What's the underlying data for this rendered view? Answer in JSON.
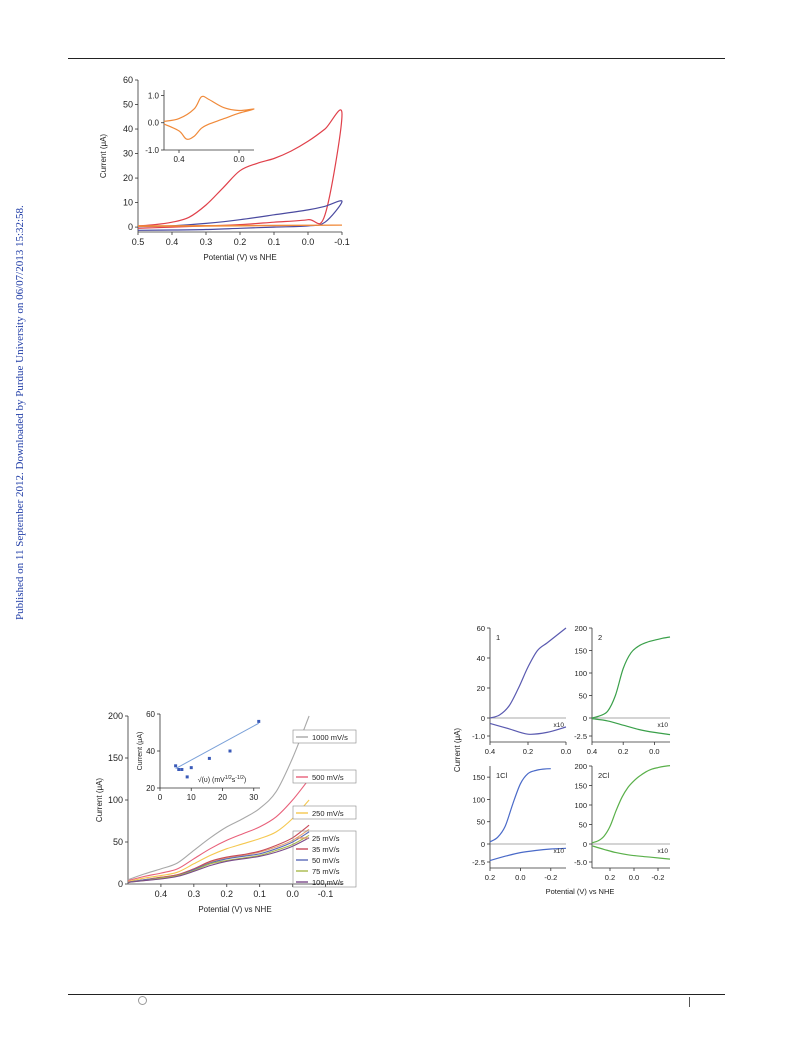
{
  "sidebar": {
    "text": "Published on 11 September 2012. Downloaded by Purdue University on 06/07/2013 15:32:58."
  },
  "chart_data": [
    {
      "id": "fig-a",
      "type": "line",
      "xlabel": "Potential (V) vs NHE",
      "ylabel": "Current (μA)",
      "xlim": [
        0.5,
        -0.1
      ],
      "ylim": [
        -2,
        60
      ],
      "xticks": [
        "0.5",
        "0.4",
        "0.3",
        "0.2",
        "0.1",
        "0.0",
        "-0.1"
      ],
      "yticks": [
        "0",
        "10",
        "20",
        "30",
        "40",
        "50",
        "60"
      ],
      "series": [
        {
          "color": "#e0404a",
          "x": [
            0.5,
            0.45,
            0.4,
            0.35,
            0.3,
            0.25,
            0.2,
            0.15,
            0.1,
            0.05,
            0.0,
            -0.05,
            -0.1,
            -0.05,
            0.0,
            0.1,
            0.2,
            0.3,
            0.4,
            0.5
          ],
          "y": [
            0.5,
            1,
            2,
            4,
            9,
            16,
            23,
            26,
            28,
            31,
            35,
            40,
            46,
            5,
            3,
            2,
            1,
            0.5,
            0,
            -0.5
          ]
        },
        {
          "color": "#4a4aa0",
          "x": [
            0.5,
            0.4,
            0.3,
            0.2,
            0.1,
            0.0,
            -0.05,
            -0.1,
            -0.05,
            0.0,
            0.1,
            0.2,
            0.3,
            0.4,
            0.5
          ],
          "y": [
            0.2,
            0.5,
            1.5,
            3,
            5,
            7,
            8.5,
            10.5,
            2,
            0.5,
            0,
            -0.5,
            -1,
            -1.2,
            -1.3
          ]
        },
        {
          "color": "#f08a3a",
          "x": [
            0.5,
            0.3,
            0.1,
            -0.1,
            0.1,
            0.3,
            0.5
          ],
          "y": [
            0.5,
            0.6,
            0.7,
            0.8,
            0.6,
            0.4,
            0.3
          ]
        }
      ],
      "inset": {
        "xlim": [
          0.5,
          -0.1
        ],
        "ylim": [
          -1.0,
          1.2
        ],
        "xticks": [
          "0.4",
          "0.0"
        ],
        "yticks": [
          "1.0",
          "0.0",
          "-1.0"
        ],
        "series": [
          {
            "color": "#f08a3a",
            "x": [
              0.5,
              0.4,
              0.3,
              0.25,
              0.2,
              0.1,
              0.0,
              -0.1,
              0.0,
              0.1,
              0.2,
              0.25,
              0.3,
              0.35,
              0.4,
              0.5
            ],
            "y": [
              0.05,
              0.15,
              0.5,
              0.95,
              0.85,
              0.55,
              0.45,
              0.5,
              0.35,
              0.15,
              -0.05,
              -0.2,
              -0.5,
              -0.6,
              -0.3,
              -0.05
            ]
          }
        ]
      }
    },
    {
      "id": "fig-b",
      "type": "line",
      "xlabel": "Potential (V) vs NHE",
      "ylabel": "Current (μA)",
      "xlim": [
        0.5,
        -0.15
      ],
      "ylim": [
        0,
        200
      ],
      "xticks": [
        "0.4",
        "0.3",
        "0.2",
        "0.1",
        "0.0",
        "-0.1"
      ],
      "yticks": [
        "0",
        "50",
        "100",
        "150",
        "200"
      ],
      "series": [
        {
          "name": "1000 mV/s",
          "color": "#a8a8a8",
          "x": [
            0.5,
            0.45,
            0.4,
            0.35,
            0.3,
            0.25,
            0.2,
            0.15,
            0.1,
            0.05,
            0.0,
            -0.05
          ],
          "y": [
            5,
            12,
            18,
            25,
            40,
            55,
            68,
            78,
            90,
            110,
            150,
            200
          ]
        },
        {
          "name": "500 mV/s",
          "color": "#e8607a",
          "x": [
            0.5,
            0.45,
            0.4,
            0.35,
            0.3,
            0.25,
            0.2,
            0.15,
            0.1,
            0.05,
            0.0,
            -0.05
          ],
          "y": [
            4,
            9,
            13,
            18,
            30,
            42,
            52,
            60,
            68,
            80,
            100,
            125
          ]
        },
        {
          "name": "250 mV/s",
          "color": "#f5c850",
          "x": [
            0.5,
            0.45,
            0.4,
            0.35,
            0.3,
            0.25,
            0.2,
            0.15,
            0.1,
            0.05,
            0.0,
            -0.05
          ],
          "y": [
            3,
            7,
            10,
            14,
            24,
            34,
            42,
            48,
            54,
            62,
            78,
            100
          ]
        },
        {
          "name": "25 mV/s",
          "color": "#e4a070",
          "x": [
            0.5,
            0.45,
            0.4,
            0.35,
            0.3,
            0.25,
            0.2,
            0.15,
            0.1,
            0.05,
            0.0,
            -0.05
          ],
          "y": [
            2,
            5,
            8,
            11,
            18,
            26,
            31,
            34,
            38,
            44,
            52,
            65
          ]
        },
        {
          "name": "35 mV/s",
          "color": "#c84a5a",
          "x": [
            0.5,
            0.45,
            0.4,
            0.35,
            0.3,
            0.25,
            0.2,
            0.15,
            0.1,
            0.05,
            0.0,
            -0.05
          ],
          "y": [
            2,
            5,
            8,
            11,
            18,
            27,
            32,
            35,
            39,
            46,
            55,
            70
          ]
        },
        {
          "name": "50 mV/s",
          "color": "#5a6ab8",
          "x": [
            0.5,
            0.45,
            0.4,
            0.35,
            0.3,
            0.25,
            0.2,
            0.15,
            0.1,
            0.05,
            0.0,
            -0.05
          ],
          "y": [
            2,
            5,
            7,
            10,
            17,
            25,
            30,
            33,
            36,
            42,
            50,
            62
          ]
        },
        {
          "name": "75 mV/s",
          "color": "#a8b84a",
          "x": [
            0.5,
            0.45,
            0.4,
            0.35,
            0.3,
            0.25,
            0.2,
            0.15,
            0.1,
            0.05,
            0.0,
            -0.05
          ],
          "y": [
            2,
            4,
            7,
            10,
            16,
            24,
            28,
            31,
            34,
            40,
            47,
            58
          ]
        },
        {
          "name": "100 mV/s",
          "color": "#7a4a8a",
          "x": [
            0.5,
            0.45,
            0.4,
            0.35,
            0.3,
            0.25,
            0.2,
            0.15,
            0.1,
            0.05,
            0.0,
            -0.05
          ],
          "y": [
            2,
            4,
            6,
            9,
            15,
            22,
            27,
            30,
            33,
            38,
            45,
            55
          ]
        }
      ],
      "inset": {
        "type": "scatter",
        "xlabel_main": "√(υ) (mV",
        "xlabel_sup1": "1/2",
        "xlabel_mid": "s",
        "xlabel_sup2": "-1/2",
        "xlabel_end": ")",
        "ylabel": "Current (μA)",
        "xlim": [
          0,
          32
        ],
        "ylim": [
          20,
          60
        ],
        "xticks": [
          "0",
          "10",
          "20",
          "30"
        ],
        "yticks": [
          "20",
          "40",
          "60"
        ],
        "points": {
          "x": [
            5,
            6,
            7,
            8.7,
            10,
            15.8,
            22.4,
            31.6
          ],
          "y": [
            32,
            30,
            30,
            26,
            31,
            36,
            40,
            56
          ]
        },
        "fit_line": {
          "x": [
            5,
            31.6
          ],
          "y": [
            30.5,
            55
          ]
        }
      }
    },
    {
      "id": "fig-c",
      "type": "line",
      "xlabel": "Potential (V) vs NHE",
      "ylabel": "Current (μA)",
      "panels": [
        {
          "label": "1",
          "note": "x10",
          "color": "#5a5ab0",
          "xlim": [
            0.4,
            0.0
          ],
          "ylim": [
            -1,
            60
          ],
          "xticks": [
            "0.4",
            "0.2",
            "0.0"
          ],
          "yticks": [
            "60",
            "40",
            "20",
            "0",
            "-1.0"
          ],
          "x": [
            0.4,
            0.35,
            0.3,
            0.25,
            0.2,
            0.15,
            0.1,
            0.05,
            0.0
          ],
          "y": [
            0,
            2,
            8,
            20,
            34,
            45,
            50,
            55,
            60
          ],
          "rev_x": [
            0.4,
            0.3,
            0.2,
            0.1,
            0.0
          ],
          "rev_y": [
            -0.3,
            -0.6,
            -0.9,
            -0.8,
            -0.5
          ]
        },
        {
          "label": "2",
          "note": "x10",
          "color": "#3aa04a",
          "xlim": [
            0.4,
            -0.1
          ],
          "ylim": [
            -2.5,
            200
          ],
          "xticks": [
            "0.4",
            "0.2",
            "0.0"
          ],
          "yticks": [
            "200",
            "150",
            "100",
            "50",
            "0",
            "-2.5"
          ],
          "x": [
            0.4,
            0.35,
            0.3,
            0.25,
            0.2,
            0.15,
            0.1,
            0.05,
            0.0,
            -0.05,
            -0.1
          ],
          "y": [
            0,
            5,
            15,
            50,
            110,
            145,
            160,
            168,
            173,
            177,
            180
          ],
          "rev_x": [
            0.4,
            0.3,
            0.2,
            0.1,
            0.0,
            -0.1
          ],
          "rev_y": [
            -0.1,
            -0.4,
            -1.0,
            -1.6,
            -2.0,
            -2.3
          ]
        },
        {
          "label": "1Cl",
          "note": "x10",
          "color": "#4a6ac8",
          "xlim": [
            0.2,
            -0.3
          ],
          "ylim": [
            -2.5,
            175
          ],
          "xticks": [
            "0.2",
            "0.0",
            "-0.2"
          ],
          "yticks": [
            "150",
            "100",
            "50",
            "0",
            "-2.5"
          ],
          "x": [
            0.2,
            0.15,
            0.1,
            0.05,
            0.0,
            -0.05,
            -0.1,
            -0.15,
            -0.2
          ],
          "y": [
            5,
            15,
            40,
            90,
            135,
            158,
            165,
            168,
            169
          ],
          "rev_x": [
            0.2,
            0.1,
            0.0,
            -0.1,
            -0.2,
            -0.3
          ],
          "rev_y": [
            -2.3,
            -1.7,
            -1.2,
            -0.9,
            -0.7,
            -0.6
          ]
        },
        {
          "label": "2Cl",
          "note": "x10",
          "color": "#5ab04a",
          "xlim": [
            0.35,
            -0.3
          ],
          "ylim": [
            -5,
            200
          ],
          "xticks": [
            "0.2",
            "0.0",
            "-0.2"
          ],
          "yticks": [
            "200",
            "150",
            "100",
            "50",
            "0",
            "-5.0"
          ],
          "x": [
            0.35,
            0.3,
            0.25,
            0.2,
            0.15,
            0.1,
            0.05,
            0.0,
            -0.05,
            -0.1,
            -0.15,
            -0.2,
            -0.25,
            -0.3
          ],
          "y": [
            3,
            8,
            20,
            45,
            85,
            120,
            145,
            162,
            175,
            185,
            192,
            196,
            199,
            201
          ],
          "rev_x": [
            0.35,
            0.25,
            0.15,
            0.05,
            -0.05,
            -0.15,
            -0.3
          ],
          "rev_y": [
            -0.5,
            -1.5,
            -2.4,
            -3.0,
            -3.4,
            -3.7,
            -4.2
          ]
        }
      ]
    }
  ]
}
